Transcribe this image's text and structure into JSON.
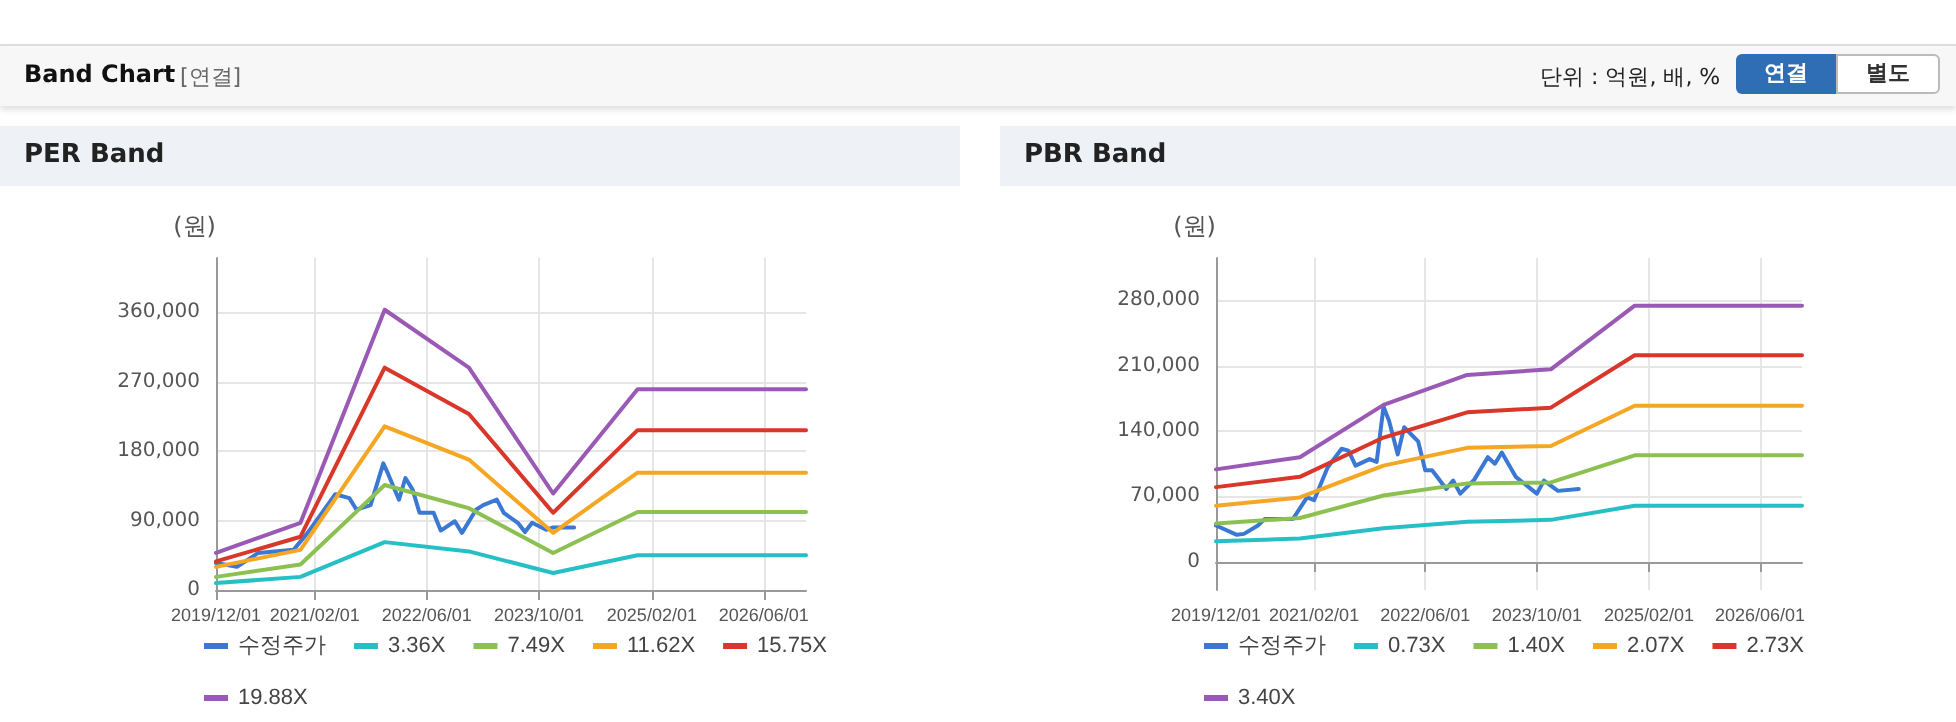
{
  "chart_data": [
    {
      "type": "line",
      "title": "PER Band",
      "ylabel": "(원)",
      "annotations": [
        "Band Chart",
        "[연결]",
        "단위 : 억원, 배, %",
        "연결",
        "별도"
      ],
      "x": [
        "2019-12-01",
        "2020-12-01",
        "2021-12-01",
        "2022-12-01",
        "2023-12-01",
        "2024-12-01",
        "2026-12-01"
      ],
      "series": [
        {
          "name": "수정주가",
          "color": "#3a78d4",
          "x": [
            "2019-12-01",
            "2020-03-01",
            "2020-06-01",
            "2020-11-01",
            "2021-01-01",
            "2021-05-01",
            "2021-07-01",
            "2021-08-01",
            "2021-10-01",
            "2021-11-25",
            "2021-12-15",
            "2022-02-01",
            "2022-03-01",
            "2022-04-01",
            "2022-05-01",
            "2022-07-01",
            "2022-08-01",
            "2022-10-01",
            "2022-11-01",
            "2023-01-01",
            "2023-02-01",
            "2023-04-01",
            "2023-05-01",
            "2023-07-01",
            "2023-08-01",
            "2023-09-01",
            "2023-11-01",
            "2023-12-01",
            "2024-03-01"
          ],
          "values": [
            35000,
            30000,
            48000,
            52000,
            74000,
            124000,
            119000,
            104000,
            110000,
            164000,
            151000,
            117000,
            145000,
            130000,
            100000,
            100000,
            77000,
            89000,
            74000,
            104000,
            110000,
            117000,
            100000,
            87000,
            75000,
            87000,
            78000,
            81000,
            81000
          ]
        },
        {
          "name": "3.36X",
          "color": "#26bfc6",
          "values": [
            9000,
            17000,
            62000,
            50000,
            22000,
            45000,
            45000
          ]
        },
        {
          "name": "7.49X",
          "color": "#8cc152",
          "values": [
            17000,
            33000,
            136000,
            106000,
            48000,
            101000,
            101000
          ]
        },
        {
          "name": "11.62X",
          "color": "#f5a623",
          "values": [
            30000,
            52000,
            212000,
            169000,
            74000,
            152000,
            152000
          ]
        },
        {
          "name": "15.75X",
          "color": "#d9372a",
          "values": [
            37000,
            69000,
            288000,
            228000,
            100000,
            207000,
            207000
          ]
        },
        {
          "name": "19.88X",
          "color": "#9b59b6",
          "values": [
            48000,
            87000,
            363000,
            288000,
            125000,
            260000,
            260000
          ]
        }
      ],
      "xlim": [
        "2019-12-01",
        "2026-12-01"
      ],
      "xticks": [
        {
          "value": "2019-12-01",
          "label": "2019/12/01"
        },
        {
          "value": "2021-02-01",
          "label": "2021/02/01"
        },
        {
          "value": "2022-06-01",
          "label": "2022/06/01"
        },
        {
          "value": "2023-10-01",
          "label": "2023/10/01"
        },
        {
          "value": "2025-02-01",
          "label": "2025/02/01"
        },
        {
          "value": "2026-06-01",
          "label": "2026/06/01"
        }
      ],
      "ylim": [
        0,
        430000
      ],
      "yticks": [
        {
          "value": 0,
          "label": "0"
        },
        {
          "value": 90000,
          "label": "90,000"
        },
        {
          "value": 180000,
          "label": "180,000"
        },
        {
          "value": 270000,
          "label": "270,000"
        },
        {
          "value": 360000,
          "label": "360,000"
        }
      ],
      "grid": true,
      "legend": "bottom",
      "marker": "none",
      "line_style": "solid"
    },
    {
      "type": "line",
      "title": "PBR Band",
      "ylabel": "(원)",
      "x": [
        "2019-12-01",
        "2020-12-01",
        "2021-12-01",
        "2022-12-01",
        "2023-12-01",
        "2024-12-01",
        "2026-12-01"
      ],
      "series": [
        {
          "name": "수정주가",
          "color": "#3a78d4",
          "x": [
            "2019-12-01",
            "2020-03-01",
            "2020-04-01",
            "2020-06-01",
            "2020-07-01",
            "2020-11-01",
            "2021-01-01",
            "2021-02-01",
            "2021-04-01",
            "2021-06-01",
            "2021-07-01",
            "2021-08-01",
            "2021-10-01",
            "2021-11-01",
            "2021-12-01",
            "2021-12-25",
            "2022-02-01",
            "2022-03-01",
            "2022-05-01",
            "2022-06-01",
            "2022-07-01",
            "2022-09-01",
            "2022-10-01",
            "2022-11-01",
            "2023-01-01",
            "2023-03-01",
            "2023-04-01",
            "2023-05-01",
            "2023-07-01",
            "2023-10-01",
            "2023-11-01",
            "2024-01-01",
            "2024-04-01"
          ],
          "values": [
            39000,
            29000,
            30000,
            39000,
            46000,
            46000,
            69000,
            66000,
            101000,
            121000,
            119000,
            103000,
            110000,
            107000,
            166000,
            151000,
            115000,
            144000,
            129000,
            98000,
            98000,
            78000,
            87000,
            73000,
            88000,
            112000,
            105000,
            117000,
            91000,
            73000,
            87000,
            76000,
            78000
          ]
        },
        {
          "name": "0.73X",
          "color": "#26bfc6",
          "values": [
            22000,
            25000,
            36000,
            43000,
            45000,
            60000,
            60000
          ]
        },
        {
          "name": "1.40X",
          "color": "#8cc152",
          "values": [
            41000,
            47000,
            71000,
            84000,
            85000,
            114000,
            114000
          ]
        },
        {
          "name": "2.07X",
          "color": "#f5a623",
          "values": [
            60000,
            69000,
            103000,
            122000,
            124000,
            167000,
            167000
          ]
        },
        {
          "name": "2.73X",
          "color": "#d9372a",
          "values": [
            80000,
            91000,
            133000,
            160000,
            165000,
            221000,
            221000
          ]
        },
        {
          "name": "3.40X",
          "color": "#9b59b6",
          "values": [
            99000,
            112000,
            168000,
            200000,
            206000,
            274000,
            274000
          ]
        }
      ],
      "xlim": [
        "2019-12-01",
        "2026-12-01"
      ],
      "xticks": [
        {
          "value": "2019-12-01",
          "label": "2019/12/01"
        },
        {
          "value": "2021-02-01",
          "label": "2021/02/01"
        },
        {
          "value": "2022-06-01",
          "label": "2022/06/01"
        },
        {
          "value": "2023-10-01",
          "label": "2023/10/01"
        },
        {
          "value": "2025-02-01",
          "label": "2025/02/01"
        },
        {
          "value": "2026-06-01",
          "label": "2026/06/01"
        }
      ],
      "ylim": [
        -30000,
        325000
      ],
      "yticks": [
        {
          "value": 0,
          "label": "0"
        },
        {
          "value": 70000,
          "label": "70,000"
        },
        {
          "value": 140000,
          "label": "140,000"
        },
        {
          "value": 210000,
          "label": "210,000"
        },
        {
          "value": 280000,
          "label": "280,000"
        }
      ],
      "grid": true,
      "legend": "bottom",
      "marker": "none",
      "line_style": "solid"
    }
  ]
}
